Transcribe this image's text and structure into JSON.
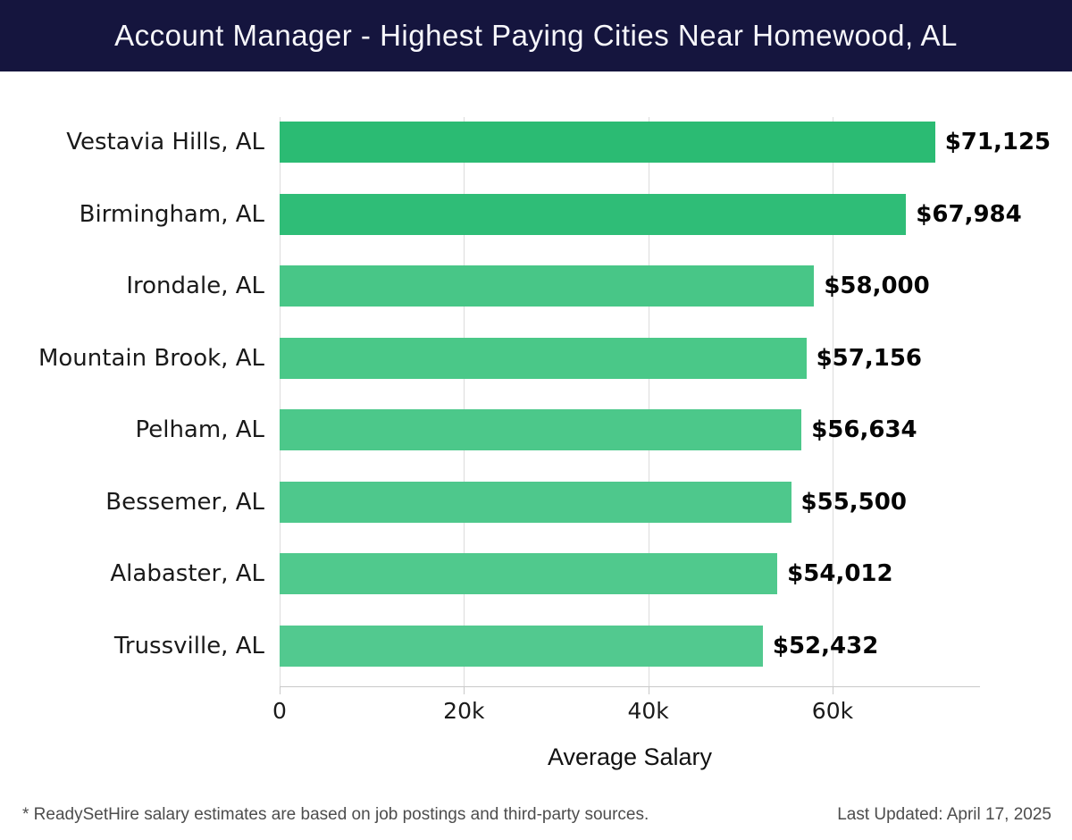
{
  "header": {
    "title": "Account Manager - Highest Paying Cities Near Homewood, AL",
    "bg_color": "#15153e",
    "text_color": "#f7f7fb"
  },
  "chart_data": {
    "type": "bar",
    "orientation": "horizontal",
    "title": "Account Manager - Highest Paying Cities Near Homewood, AL",
    "categories": [
      "Vestavia Hills, AL",
      "Birmingham, AL",
      "Irondale, AL",
      "Mountain Brook, AL",
      "Pelham, AL",
      "Bessemer, AL",
      "Alabaster, AL",
      "Trussville, AL"
    ],
    "values": [
      71125,
      67984,
      58000,
      57156,
      56634,
      55500,
      54012,
      52432
    ],
    "value_labels": [
      "$71,125",
      "$67,984",
      "$58,000",
      "$57,156",
      "$56,634",
      "$55,500",
      "$54,012",
      "$52,432"
    ],
    "bar_colors": [
      "#2bbb73",
      "#2fbd77",
      "#48c687",
      "#4ac888",
      "#4cc88a",
      "#4ec88c",
      "#50c98d",
      "#52c98f"
    ],
    "xlabel": "Average Salary",
    "xlim": [
      0,
      76000
    ],
    "xticks": [
      {
        "value": 0,
        "label": "0"
      },
      {
        "value": 20000,
        "label": "20k"
      },
      {
        "value": 40000,
        "label": "40k"
      },
      {
        "value": 60000,
        "label": "60k"
      }
    ],
    "grid": "vertical-only",
    "gridline_color": "#dcdcdc",
    "axis_color": "#c9c9c9",
    "legend": "none"
  },
  "footer": {
    "note": "* ReadySetHire salary estimates are based on job postings and third-party sources.",
    "last_updated": "Last Updated: April 17, 2025"
  }
}
